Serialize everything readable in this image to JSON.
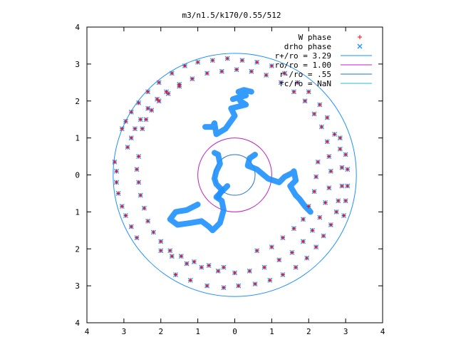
{
  "chart_data": {
    "type": "scatter",
    "title": "m3/n1.5/k170/0.55/512",
    "xlabel": "",
    "ylabel": "",
    "xlim": [
      -4,
      4
    ],
    "ylim": [
      -4,
      4
    ],
    "x_ticks": [
      -4,
      -3,
      -2,
      -1,
      0,
      1,
      2,
      3,
      4
    ],
    "y_ticks": [
      -4,
      -3,
      -2,
      -1,
      0,
      1,
      2,
      3,
      4
    ],
    "x_tick_labels": [
      "4",
      "3",
      "2",
      "1",
      "0",
      "1",
      "2",
      "3",
      "4"
    ],
    "y_tick_labels": [
      "4",
      "3",
      "2",
      "1",
      "0",
      "1",
      "2",
      "3",
      "4"
    ],
    "grid": false,
    "legend_position": "top-right",
    "series": [
      {
        "name": "W phase",
        "marker": "+",
        "color": "#ff0000",
        "points": [
          [
            -3.25,
            0.35
          ],
          [
            -3.2,
            0.1
          ],
          [
            -3.2,
            -0.2
          ],
          [
            -3.15,
            -0.5
          ],
          [
            -3.05,
            -0.85
          ],
          [
            -2.95,
            -1.1
          ],
          [
            -2.8,
            -1.4
          ],
          [
            -2.65,
            -1.7
          ],
          [
            -3.05,
            1.25
          ],
          [
            -2.95,
            1.45
          ],
          [
            -2.8,
            1.7
          ],
          [
            -2.6,
            1.95
          ],
          [
            -2.35,
            2.25
          ],
          [
            -2.05,
            2.5
          ],
          [
            -1.7,
            2.75
          ],
          [
            -1.35,
            2.95
          ],
          [
            -1.0,
            3.05
          ],
          [
            -0.6,
            3.1
          ],
          [
            -0.2,
            3.15
          ],
          [
            0.2,
            3.1
          ],
          [
            0.6,
            3.05
          ],
          [
            1.0,
            2.95
          ],
          [
            1.35,
            2.75
          ],
          [
            1.7,
            2.5
          ],
          [
            2.0,
            2.25
          ],
          [
            2.3,
            1.9
          ],
          [
            2.5,
            1.55
          ],
          [
            2.7,
            1.1
          ],
          [
            2.85,
            0.7
          ],
          [
            2.9,
            0.2
          ],
          [
            2.9,
            -0.3
          ],
          [
            2.8,
            -0.7
          ],
          [
            2.75,
            -1.0
          ],
          [
            2.6,
            -1.35
          ],
          [
            2.4,
            -1.65
          ],
          [
            2.2,
            -1.95
          ],
          [
            1.95,
            -2.25
          ],
          [
            1.65,
            -2.5
          ],
          [
            1.3,
            -2.7
          ],
          [
            0.95,
            -2.85
          ],
          [
            0.55,
            -2.95
          ],
          [
            0.1,
            -3.0
          ],
          [
            -0.3,
            -3.05
          ],
          [
            -0.75,
            -3.0
          ],
          [
            -1.2,
            -2.85
          ],
          [
            -1.6,
            -2.7
          ],
          [
            -2.9,
            0.75
          ],
          [
            -2.8,
            1.0
          ],
          [
            -2.7,
            1.25
          ],
          [
            -2.55,
            1.5
          ],
          [
            -2.35,
            1.8
          ],
          [
            -2.1,
            2.05
          ],
          [
            -1.85,
            2.25
          ],
          [
            -1.5,
            2.45
          ],
          [
            -1.15,
            2.6
          ],
          [
            -0.75,
            2.75
          ],
          [
            -0.35,
            2.8
          ],
          [
            0.05,
            2.85
          ],
          [
            0.45,
            2.8
          ],
          [
            0.85,
            2.7
          ],
          [
            1.25,
            2.5
          ],
          [
            1.6,
            2.25
          ],
          [
            1.9,
            2.0
          ],
          [
            2.15,
            1.65
          ],
          [
            2.35,
            1.3
          ],
          [
            2.5,
            0.9
          ],
          [
            2.55,
            0.5
          ],
          [
            2.6,
            0.1
          ],
          [
            2.55,
            -0.35
          ],
          [
            2.45,
            -0.75
          ],
          [
            2.3,
            -1.15
          ],
          [
            2.1,
            -1.5
          ],
          [
            1.85,
            -1.8
          ],
          [
            1.55,
            -2.1
          ],
          [
            1.2,
            -2.3
          ],
          [
            0.8,
            -2.5
          ],
          [
            0.4,
            -2.6
          ],
          [
            0.0,
            -2.65
          ],
          [
            -0.45,
            -2.6
          ],
          [
            -0.9,
            -2.5
          ],
          [
            -1.3,
            -2.4
          ],
          [
            -1.7,
            -2.2
          ],
          [
            -2.0,
            -2.05
          ],
          [
            -2.5,
            1.25
          ],
          [
            -2.4,
            1.5
          ],
          [
            -2.25,
            1.75
          ],
          [
            -2.05,
            2.0
          ],
          [
            -1.8,
            2.2
          ],
          [
            -1.5,
            2.4
          ],
          [
            -2.6,
            0.5
          ],
          [
            -2.65,
            0.15
          ],
          [
            -2.6,
            -0.2
          ],
          [
            -2.55,
            -0.55
          ],
          [
            -2.45,
            -0.9
          ],
          [
            -2.35,
            -1.25
          ],
          [
            -2.2,
            -1.55
          ],
          [
            -2.0,
            -1.8
          ],
          [
            -1.75,
            -2.05
          ],
          [
            -1.45,
            -2.2
          ],
          [
            -1.1,
            -2.35
          ],
          [
            -0.7,
            -2.45
          ],
          [
            -0.3,
            -2.5
          ],
          [
            2.95,
            -1.1
          ],
          [
            3.0,
            -0.7
          ],
          [
            3.05,
            -0.3
          ],
          [
            3.05,
            0.15
          ],
          [
            3.0,
            0.55
          ],
          [
            2.85,
            1.0
          ],
          [
            2.25,
            0.35
          ],
          [
            2.2,
            -0.05
          ],
          [
            2.15,
            -0.45
          ],
          [
            2.0,
            -0.85
          ],
          [
            1.85,
            -1.2
          ],
          [
            1.6,
            -1.45
          ],
          [
            1.3,
            -1.7
          ],
          [
            1.0,
            -1.95
          ],
          [
            0.6,
            -2.05
          ]
        ]
      },
      {
        "name": "drho phase",
        "marker": "x",
        "color": "#1e90ff",
        "points": [
          [
            -3.25,
            0.35
          ],
          [
            -3.2,
            0.1
          ],
          [
            -3.2,
            -0.2
          ],
          [
            -3.15,
            -0.5
          ],
          [
            -3.05,
            -0.85
          ],
          [
            -2.95,
            -1.1
          ],
          [
            -2.8,
            -1.4
          ],
          [
            -2.65,
            -1.7
          ],
          [
            -3.05,
            1.25
          ],
          [
            -2.95,
            1.45
          ],
          [
            -2.8,
            1.7
          ],
          [
            -2.6,
            1.95
          ],
          [
            -2.35,
            2.25
          ],
          [
            -2.05,
            2.5
          ],
          [
            -1.7,
            2.75
          ],
          [
            -1.35,
            2.95
          ],
          [
            -1.0,
            3.05
          ],
          [
            -0.6,
            3.1
          ],
          [
            -0.2,
            3.15
          ],
          [
            0.2,
            3.1
          ],
          [
            0.6,
            3.05
          ],
          [
            1.0,
            2.95
          ],
          [
            1.35,
            2.75
          ],
          [
            1.7,
            2.5
          ],
          [
            2.0,
            2.25
          ],
          [
            2.3,
            1.9
          ],
          [
            2.5,
            1.55
          ],
          [
            2.7,
            1.1
          ],
          [
            2.85,
            0.7
          ],
          [
            2.9,
            0.2
          ],
          [
            2.9,
            -0.3
          ],
          [
            2.8,
            -0.7
          ],
          [
            2.75,
            -1.0
          ],
          [
            2.6,
            -1.35
          ],
          [
            2.4,
            -1.65
          ],
          [
            2.2,
            -1.95
          ],
          [
            1.95,
            -2.25
          ],
          [
            1.65,
            -2.5
          ],
          [
            1.3,
            -2.7
          ],
          [
            0.95,
            -2.85
          ],
          [
            0.55,
            -2.95
          ],
          [
            0.1,
            -3.0
          ],
          [
            -0.3,
            -3.05
          ],
          [
            -0.75,
            -3.0
          ],
          [
            -1.2,
            -2.85
          ],
          [
            -1.6,
            -2.7
          ],
          [
            -2.9,
            0.75
          ],
          [
            -2.8,
            1.0
          ],
          [
            -2.7,
            1.25
          ],
          [
            -2.55,
            1.5
          ],
          [
            -2.35,
            1.8
          ],
          [
            -2.1,
            2.05
          ],
          [
            -1.85,
            2.25
          ],
          [
            -1.5,
            2.45
          ],
          [
            -1.15,
            2.6
          ],
          [
            -0.75,
            2.75
          ],
          [
            -0.35,
            2.8
          ],
          [
            0.05,
            2.85
          ],
          [
            0.45,
            2.8
          ],
          [
            0.85,
            2.7
          ],
          [
            1.25,
            2.5
          ],
          [
            1.6,
            2.25
          ],
          [
            1.9,
            2.0
          ],
          [
            2.15,
            1.65
          ],
          [
            2.35,
            1.3
          ],
          [
            2.5,
            0.9
          ],
          [
            2.55,
            0.5
          ],
          [
            2.6,
            0.1
          ],
          [
            2.55,
            -0.35
          ],
          [
            2.45,
            -0.75
          ],
          [
            2.3,
            -1.15
          ],
          [
            2.1,
            -1.5
          ],
          [
            1.85,
            -1.8
          ],
          [
            1.55,
            -2.1
          ],
          [
            1.2,
            -2.3
          ],
          [
            0.8,
            -2.5
          ],
          [
            0.4,
            -2.6
          ],
          [
            0.0,
            -2.65
          ],
          [
            -0.45,
            -2.6
          ],
          [
            -0.9,
            -2.5
          ],
          [
            -1.3,
            -2.4
          ],
          [
            -1.7,
            -2.2
          ],
          [
            -2.0,
            -2.05
          ],
          [
            -2.5,
            1.25
          ],
          [
            -2.4,
            1.5
          ],
          [
            -2.25,
            1.75
          ],
          [
            -2.05,
            2.0
          ],
          [
            -1.8,
            2.2
          ],
          [
            -1.5,
            2.4
          ],
          [
            -2.6,
            0.5
          ],
          [
            -2.65,
            0.15
          ],
          [
            -2.6,
            -0.2
          ],
          [
            -2.55,
            -0.55
          ],
          [
            -2.45,
            -0.9
          ],
          [
            -2.35,
            -1.25
          ],
          [
            -2.2,
            -1.55
          ],
          [
            -2.0,
            -1.8
          ],
          [
            -1.75,
            -2.05
          ],
          [
            -1.45,
            -2.2
          ],
          [
            -1.1,
            -2.35
          ],
          [
            -0.7,
            -2.45
          ],
          [
            -0.3,
            -2.5
          ],
          [
            2.95,
            -1.1
          ],
          [
            3.0,
            -0.7
          ],
          [
            3.05,
            -0.3
          ],
          [
            3.05,
            0.15
          ],
          [
            3.0,
            0.55
          ],
          [
            2.85,
            1.0
          ],
          [
            2.25,
            0.35
          ],
          [
            2.2,
            -0.05
          ],
          [
            2.15,
            -0.45
          ],
          [
            2.0,
            -0.85
          ],
          [
            1.85,
            -1.2
          ],
          [
            1.6,
            -1.45
          ],
          [
            1.3,
            -1.7
          ],
          [
            1.0,
            -1.95
          ],
          [
            0.6,
            -2.05
          ]
        ],
        "curves": [
          [
            [
              -1.0,
              -0.8
            ],
            [
              -1.3,
              -0.95
            ],
            [
              -1.6,
              -1.0
            ],
            [
              -1.75,
              -1.2
            ],
            [
              -1.55,
              -1.35
            ],
            [
              -1.2,
              -1.3
            ],
            [
              -0.9,
              -1.25
            ],
            [
              -0.7,
              -1.4
            ],
            [
              -0.6,
              -1.5
            ],
            [
              -0.4,
              -1.3
            ],
            [
              -0.3,
              -0.95
            ],
            [
              -0.35,
              -0.7
            ],
            [
              -0.5,
              -0.6
            ],
            [
              -0.2,
              -0.3
            ]
          ],
          [
            [
              -0.8,
              1.3
            ],
            [
              -0.6,
              1.3
            ],
            [
              -0.55,
              1.4
            ],
            [
              -0.5,
              1.1
            ],
            [
              -0.25,
              1.25
            ],
            [
              0.0,
              1.6
            ],
            [
              -0.1,
              1.8
            ],
            [
              0.3,
              1.9
            ],
            [
              0.15,
              2.0
            ],
            [
              0.1,
              2.1
            ],
            [
              -0.05,
              2.05
            ],
            [
              0.3,
              2.15
            ],
            [
              0.1,
              2.25
            ],
            [
              0.25,
              2.3
            ],
            [
              0.45,
              2.25
            ]
          ],
          [
            [
              0.55,
              0.55
            ],
            [
              0.4,
              0.45
            ],
            [
              0.35,
              0.25
            ],
            [
              0.6,
              0.15
            ],
            [
              0.9,
              -0.1
            ],
            [
              1.2,
              -0.2
            ],
            [
              1.35,
              -0.05
            ],
            [
              1.55,
              0.05
            ],
            [
              1.6,
              0.1
            ],
            [
              1.65,
              -0.15
            ],
            [
              1.5,
              -0.3
            ],
            [
              1.65,
              -0.55
            ],
            [
              1.75,
              -0.65
            ],
            [
              1.9,
              -0.85
            ],
            [
              2.05,
              -1.0
            ]
          ],
          [
            [
              -0.55,
              0.6
            ],
            [
              -0.45,
              0.55
            ],
            [
              -0.4,
              0.3
            ],
            [
              -0.5,
              0.1
            ],
            [
              -0.55,
              -0.1
            ],
            [
              -0.5,
              -0.25
            ],
            [
              -0.35,
              -0.4
            ],
            [
              -0.45,
              -0.6
            ]
          ]
        ]
      },
      {
        "name": "r+/ro = 3.29",
        "type": "circle",
        "radius": 3.29,
        "color": "#1e90ff"
      },
      {
        "name": "ro/ro = 1.00",
        "type": "circle",
        "radius": 1.0,
        "color": "#c020c0"
      },
      {
        "name": "r-/ro = .55",
        "type": "circle",
        "radius": 0.55,
        "color": "#1e70d0"
      },
      {
        "name": "rc/ro = NaN",
        "type": "circle",
        "radius": null,
        "color": "#20c0e0"
      }
    ]
  }
}
